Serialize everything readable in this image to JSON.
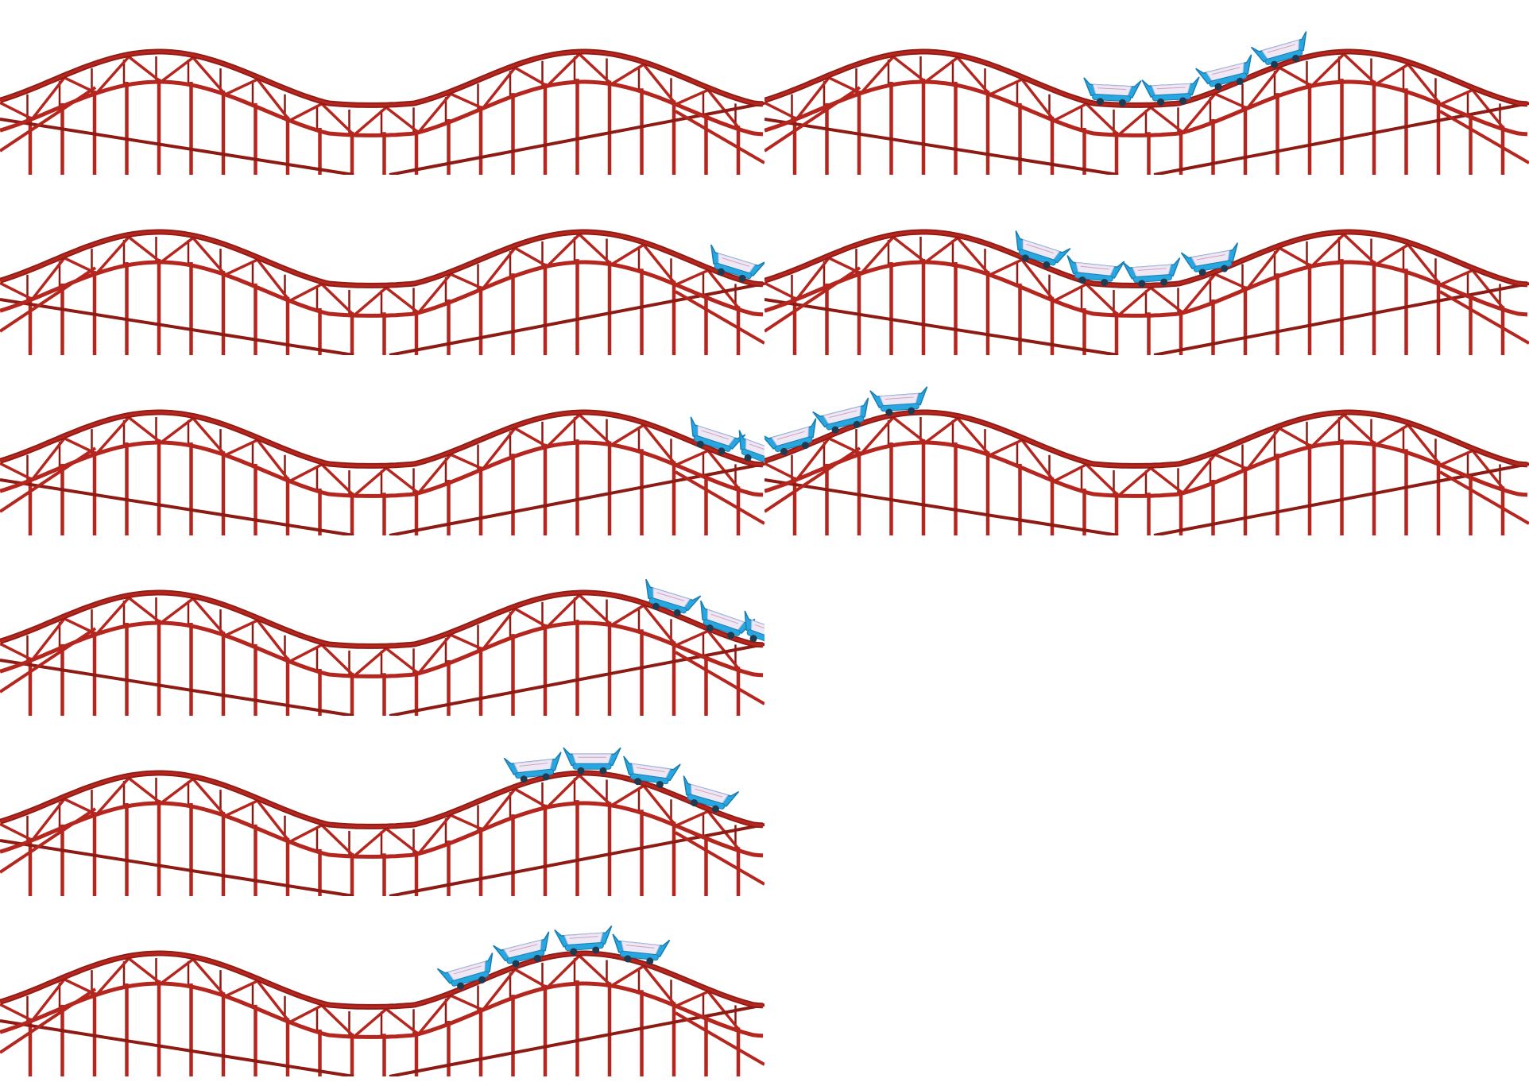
{
  "colors": {
    "background": "#ffffff",
    "track": "#b5261e",
    "track_dark": "#8e1a14",
    "car_body": "#27a6e0",
    "car_trim": "#1a7fb3",
    "car_seat": "#ede8f5",
    "car_wheel": "#1e3b52"
  },
  "panels": [
    {
      "id": "strip-1-left",
      "cars": []
    },
    {
      "id": "strip-1-right",
      "cars": [
        {
          "icon": "coaster-car-icon",
          "count": 4
        }
      ]
    },
    {
      "id": "strip-2-left",
      "cars": [
        {
          "icon": "coaster-car-icon",
          "count": 1
        }
      ]
    },
    {
      "id": "strip-2-right",
      "cars": [
        {
          "icon": "coaster-car-icon",
          "count": 4
        }
      ]
    },
    {
      "id": "strip-3-left",
      "cars": [
        {
          "icon": "coaster-car-icon",
          "count": 2
        }
      ]
    },
    {
      "id": "strip-3-right",
      "cars": [
        {
          "icon": "coaster-car-icon",
          "count": 3
        }
      ]
    },
    {
      "id": "strip-4-left",
      "cars": [
        {
          "icon": "coaster-car-icon",
          "count": 3
        }
      ]
    },
    {
      "id": "strip-5-left",
      "cars": [
        {
          "icon": "coaster-car-icon",
          "count": 4
        }
      ]
    },
    {
      "id": "strip-6-left",
      "cars": [
        {
          "icon": "coaster-car-icon",
          "count": 4
        }
      ]
    }
  ]
}
